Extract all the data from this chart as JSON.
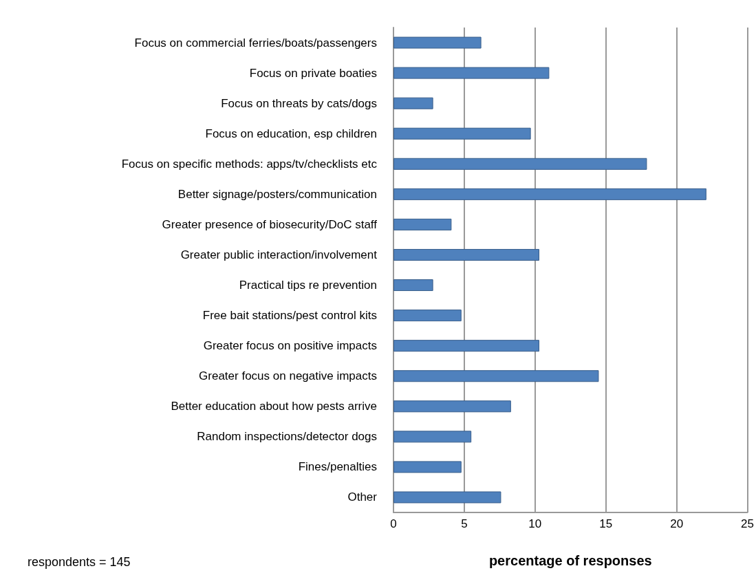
{
  "chart_data": {
    "type": "bar",
    "orientation": "horizontal",
    "xlabel": "percentage of responses",
    "categories": [
      "Focus on commercial ferries/boats/passengers",
      "Focus on private boaties",
      "Focus on threats by cats/dogs",
      "Focus on education, esp children",
      "Focus on specific methods: apps/tv/checklists etc",
      "Better signage/posters/communication",
      "Greater presence of biosecurity/DoC staff",
      "Greater public interaction/involvement",
      "Practical tips re prevention",
      "Free bait stations/pest control kits",
      "Greater focus on positive impacts",
      "Greater focus on negative impacts",
      "Better education about how pests arrive",
      "Random inspections/detector dogs",
      "Fines/penalties",
      "Other"
    ],
    "values": [
      6.2,
      11.0,
      2.8,
      9.7,
      17.9,
      22.1,
      4.1,
      10.3,
      2.8,
      4.8,
      10.3,
      14.5,
      8.3,
      5.5,
      4.8,
      7.6
    ],
    "color": "#4f81bd",
    "xlim": [
      0,
      25
    ],
    "xticks": [
      0,
      5,
      10,
      15,
      20,
      25
    ],
    "grid": "x",
    "annotations": [
      "respondents = 145"
    ]
  }
}
